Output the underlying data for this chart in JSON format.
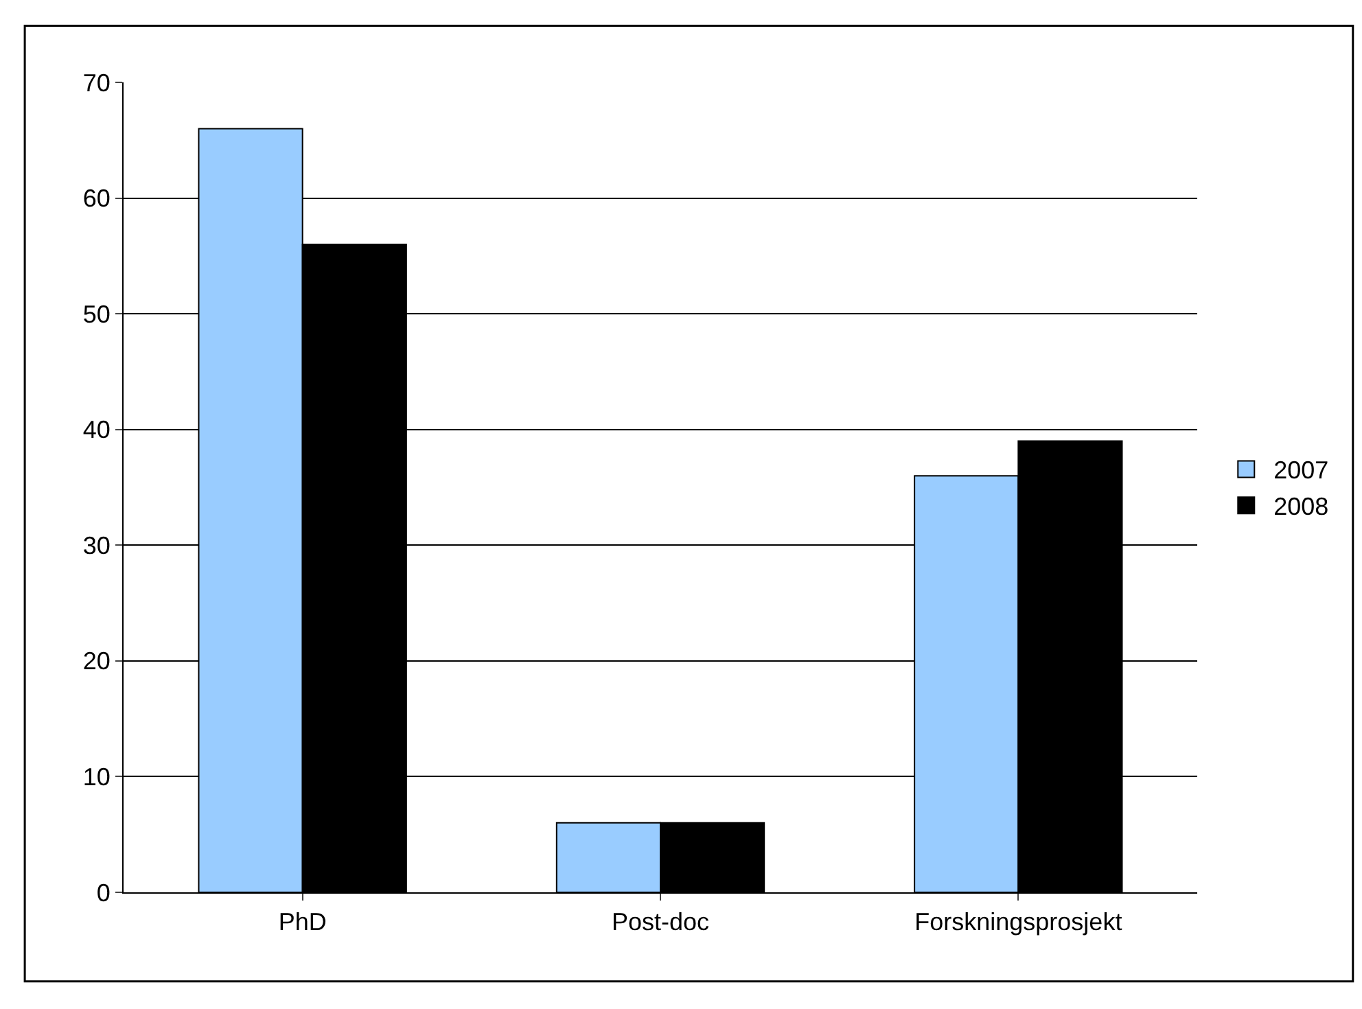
{
  "chart_data": {
    "type": "bar",
    "categories": [
      "PhD",
      "Post-doc",
      "Forskningsprosjekt"
    ],
    "series": [
      {
        "name": "2007",
        "color": "#99ccff",
        "values": [
          66,
          6,
          36
        ]
      },
      {
        "name": "2008",
        "color": "#000000",
        "values": [
          56,
          6,
          39
        ]
      }
    ],
    "ylim": [
      0,
      70
    ],
    "yticks": [
      0,
      10,
      20,
      30,
      40,
      50,
      60,
      70
    ],
    "grid": "y",
    "legend": "right"
  }
}
